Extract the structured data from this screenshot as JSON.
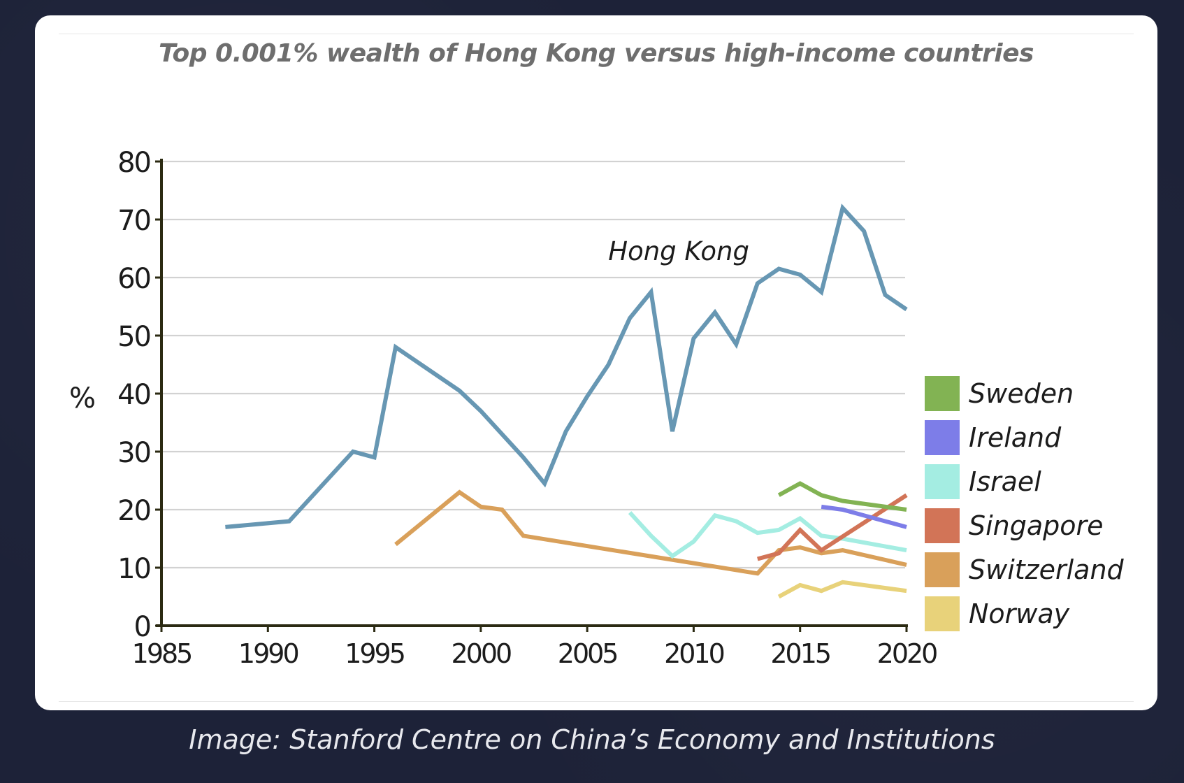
{
  "chart_data": {
    "type": "line",
    "title": "Top 0.001% wealth of Hong Kong versus high-income countries",
    "xlabel": "",
    "ylabel": "%",
    "xlim": [
      1985,
      2020
    ],
    "ylim": [
      0,
      80
    ],
    "xticks": [
      1985,
      1990,
      1995,
      2000,
      2005,
      2010,
      2015,
      2020
    ],
    "yticks": [
      0,
      10,
      20,
      30,
      40,
      50,
      60,
      70,
      80
    ],
    "grid": true,
    "legend_position": "right",
    "annotation": {
      "text": "Hong Kong",
      "x": 2009.3,
      "y": 63
    },
    "series": [
      {
        "name": "Hong Kong",
        "color": "#6797b3",
        "labelled_by": "annotation",
        "points": [
          [
            1988,
            17
          ],
          [
            1991,
            18
          ],
          [
            1994,
            30
          ],
          [
            1995,
            29
          ],
          [
            1996,
            48
          ],
          [
            1999,
            40.5
          ],
          [
            2000,
            37
          ],
          [
            2002,
            29
          ],
          [
            2003,
            24.5
          ],
          [
            2004,
            33.5
          ],
          [
            2005,
            39.5
          ],
          [
            2006,
            45
          ],
          [
            2007,
            53
          ],
          [
            2008,
            57.5
          ],
          [
            2009,
            33.5
          ],
          [
            2010,
            49.5
          ],
          [
            2011,
            54
          ],
          [
            2012,
            48.5
          ],
          [
            2013,
            59
          ],
          [
            2014,
            61.5
          ],
          [
            2015,
            60.5
          ],
          [
            2016,
            57.5
          ],
          [
            2017,
            72
          ],
          [
            2018,
            68
          ],
          [
            2019,
            57
          ],
          [
            2020,
            54.5
          ]
        ]
      },
      {
        "name": "Switzerland",
        "color": "#d9a05a",
        "points": [
          [
            1996,
            14
          ],
          [
            1999,
            23
          ],
          [
            2000,
            20.5
          ],
          [
            2001,
            20
          ],
          [
            2002,
            15.5
          ],
          [
            2013,
            9
          ],
          [
            2014,
            13
          ],
          [
            2015,
            13.5
          ],
          [
            2016,
            12.5
          ],
          [
            2017,
            13
          ],
          [
            2020,
            10.5
          ]
        ]
      },
      {
        "name": "Israel",
        "color": "#a4ede2",
        "points": [
          [
            2007,
            19.5
          ],
          [
            2008,
            15.5
          ],
          [
            2009,
            12
          ],
          [
            2010,
            14.5
          ],
          [
            2011,
            19
          ],
          [
            2012,
            18
          ],
          [
            2013,
            16
          ],
          [
            2014,
            16.5
          ],
          [
            2015,
            18.5
          ],
          [
            2016,
            15.5
          ],
          [
            2017,
            15
          ],
          [
            2020,
            13
          ]
        ]
      },
      {
        "name": "Singapore",
        "color": "#d27457",
        "points": [
          [
            2013,
            11.5
          ],
          [
            2014,
            12.5
          ],
          [
            2015,
            16.5
          ],
          [
            2016,
            13
          ],
          [
            2020,
            22.5
          ]
        ]
      },
      {
        "name": "Sweden",
        "color": "#82b353",
        "points": [
          [
            2014,
            22.5
          ],
          [
            2015,
            24.5
          ],
          [
            2016,
            22.5
          ],
          [
            2017,
            21.5
          ],
          [
            2020,
            20
          ]
        ]
      },
      {
        "name": "Ireland",
        "color": "#7d7de8",
        "points": [
          [
            2016,
            20.5
          ],
          [
            2017,
            20
          ],
          [
            2020,
            17
          ]
        ]
      },
      {
        "name": "Norway",
        "color": "#e8d27a",
        "points": [
          [
            2014,
            5
          ],
          [
            2015,
            7
          ],
          [
            2016,
            6
          ],
          [
            2017,
            7.5
          ],
          [
            2020,
            6
          ]
        ]
      }
    ],
    "legend": [
      "Sweden",
      "Ireland",
      "Israel",
      "Singapore",
      "Switzerland",
      "Norway"
    ]
  },
  "caption": "Image: Stanford Centre on China’s Economy and Institutions"
}
